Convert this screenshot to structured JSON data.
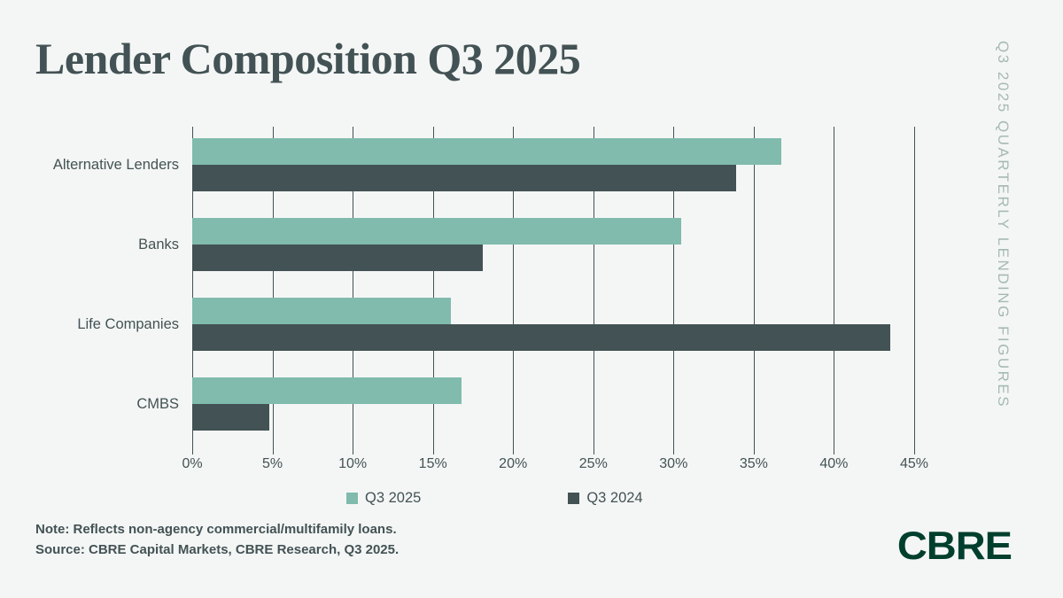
{
  "page": {
    "title": "Lender Composition Q3 2025",
    "side_label": "Q3 2025 QUARTERLY LENDING FIGURES",
    "note_line1": "Note: Reflects non-agency commercial/multifamily loans.",
    "note_line2": "Source: CBRE Capital Markets, CBRE Research, Q3 2025.",
    "logo_text": "CBRE"
  },
  "colors": {
    "background": "#f4f6f5",
    "title_text": "#435254",
    "side_label_text": "#a6b9b3",
    "bar_q3_2025": "#80bbad",
    "bar_q3_2024": "#435254",
    "gridline": "#435254",
    "axis_text": "#435254",
    "logo_green": "#003f2d"
  },
  "chart_data": {
    "type": "bar",
    "orientation": "horizontal",
    "title": "Lender Composition Q3 2025",
    "categories": [
      "Alternative Lenders",
      "Banks",
      "Life Companies",
      "CMBS"
    ],
    "series": [
      {
        "name": "Q3 2025",
        "color": "#80bbad",
        "values": [
          36.7,
          30.5,
          16.1,
          16.8
        ]
      },
      {
        "name": "Q3 2024",
        "color": "#435254",
        "values": [
          33.9,
          18.1,
          43.5,
          4.8
        ]
      }
    ],
    "unit": "%",
    "x_ticks": [
      "0%",
      "5%",
      "10%",
      "15%",
      "20%",
      "25%",
      "30%",
      "35%",
      "40%",
      "45%"
    ],
    "x_tick_values": [
      0,
      5,
      10,
      15,
      20,
      25,
      30,
      35,
      40,
      45
    ],
    "xlim": [
      0,
      45
    ],
    "grid": true,
    "legend_position": "bottom"
  }
}
